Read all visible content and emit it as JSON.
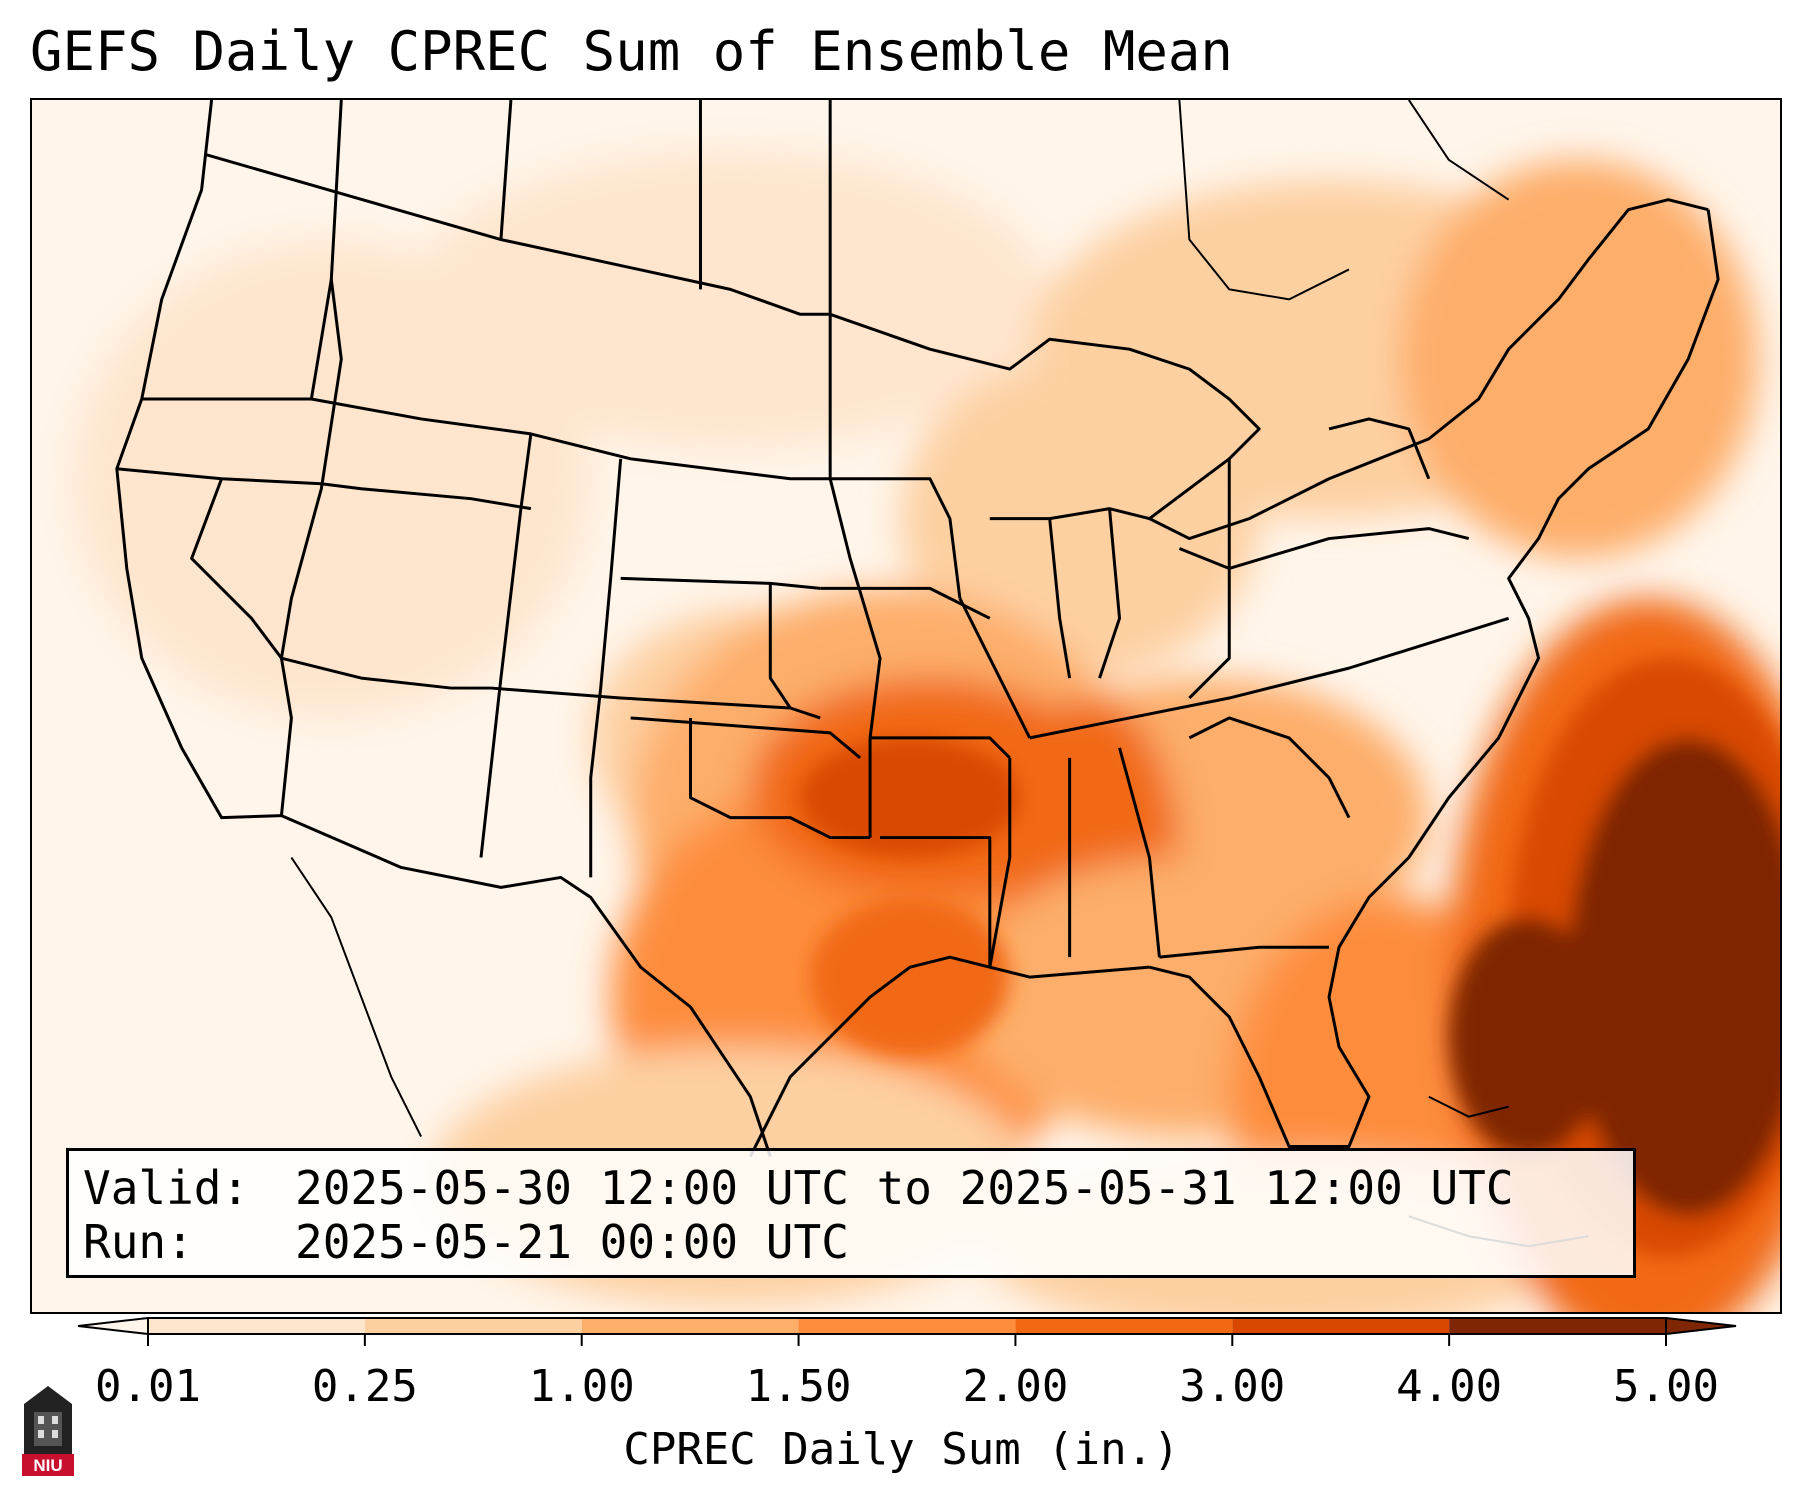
{
  "title": "GEFS Daily CPREC Sum of Ensemble Mean",
  "info": {
    "valid_label": "Valid:",
    "valid_value": "2025-05-30 12:00 UTC to 2025-05-31 12:00 UTC",
    "run_label": "Run:",
    "run_value": "2025-05-21 00:00 UTC"
  },
  "colorbar": {
    "label": "CPREC Daily Sum (in.)",
    "ticks": [
      "0.01",
      "0.25",
      "1.00",
      "1.50",
      "2.00",
      "3.00",
      "4.00",
      "5.00"
    ],
    "colors": [
      "#fff5eb",
      "#fee6ce",
      "#fdd0a2",
      "#fdae6b",
      "#fd8d3c",
      "#f16913",
      "#d94801",
      "#7f2704"
    ],
    "extend": "both"
  },
  "logo": {
    "text": "NIU",
    "icon": "university-tower-icon",
    "color": "#c8102e"
  },
  "map": {
    "region": "Contiguous United States",
    "field": "CPREC daily sum",
    "features": [
      "state-borders",
      "coastlines",
      "great-lakes"
    ]
  }
}
